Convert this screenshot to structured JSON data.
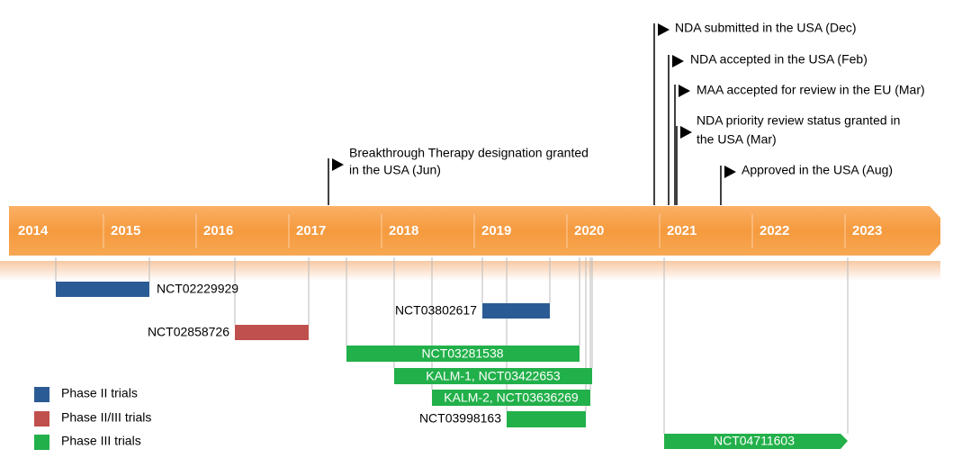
{
  "timeline": {
    "years": [
      "2014",
      "2015",
      "2016",
      "2017",
      "2018",
      "2019",
      "2020",
      "2021",
      "2022",
      "2023"
    ]
  },
  "milestones": [
    {
      "lines": [
        "Breakthrough Therapy designation granted",
        "in the USA (Jun)"
      ]
    },
    {
      "lines": [
        "NDA submitted in the USA (Dec)"
      ]
    },
    {
      "lines": [
        "NDA accepted in the USA (Feb)"
      ]
    },
    {
      "lines": [
        "MAA accepted for review in the EU (Mar)"
      ]
    },
    {
      "lines": [
        "NDA priority review status granted in",
        "the USA (Mar)"
      ]
    },
    {
      "lines": [
        "Approved in the USA  (Aug)"
      ]
    }
  ],
  "trials": [
    {
      "label": "NCT02229929"
    },
    {
      "label": "NCT02858726"
    },
    {
      "label": "NCT03802617"
    },
    {
      "label": "NCT03281538"
    },
    {
      "label": "KALM-1, NCT03422653"
    },
    {
      "label": "KALM-2, NCT03636269"
    },
    {
      "label": "NCT03998163"
    },
    {
      "label": "NCT04711603"
    }
  ],
  "legend": [
    {
      "label": "Phase II trials"
    },
    {
      "label": "Phase II/III trials"
    },
    {
      "label": "Phase III trials"
    }
  ]
}
